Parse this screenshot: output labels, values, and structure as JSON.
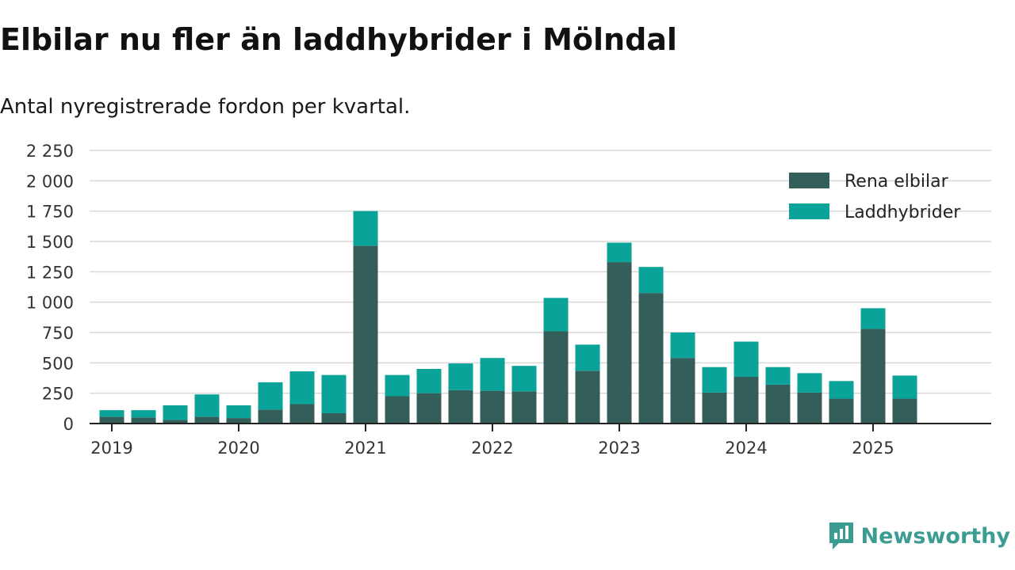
{
  "title": "Elbilar nu fler än laddhybrider i Mölndal",
  "subtitle": "Antal nyregistrerade fordon per kvartal.",
  "brand": {
    "name": "Newsworthy",
    "icon": "newsworthy-logo-icon"
  },
  "colors": {
    "bev": "#335e5a",
    "phev": "#0aa39a",
    "grid": "#d9d9d9",
    "axis": "#222222",
    "text": "#333333"
  },
  "chart_data": {
    "type": "bar",
    "stacked": true,
    "title": "Elbilar nu fler än laddhybrider i Mölndal",
    "subtitle": "Antal nyregistrerade fordon per kvartal.",
    "xlabel": "",
    "ylabel": "",
    "ylim": [
      0,
      2250
    ],
    "yticks": [
      0,
      250,
      500,
      750,
      1000,
      1250,
      1500,
      1750,
      2000,
      2250
    ],
    "ytick_labels": [
      "0",
      "250",
      "500",
      "750",
      "1 000",
      "1 250",
      "1 500",
      "1 750",
      "2 000",
      "2 250"
    ],
    "xticks": [
      "2019",
      "2020",
      "2021",
      "2022",
      "2023",
      "2024",
      "2025"
    ],
    "grid": true,
    "legend_position": "top-right",
    "categories": [
      "2019 Q1",
      "2019 Q2",
      "2019 Q3",
      "2019 Q4",
      "2020 Q1",
      "2020 Q2",
      "2020 Q3",
      "2020 Q4",
      "2021 Q1",
      "2021 Q2",
      "2021 Q3",
      "2021 Q4",
      "2022 Q1",
      "2022 Q2",
      "2022 Q3",
      "2022 Q4",
      "2023 Q1",
      "2023 Q2",
      "2023 Q3",
      "2023 Q4",
      "2024 Q1",
      "2024 Q2",
      "2024 Q3",
      "2024 Q4",
      "2025 Q1",
      "2025 Q2",
      "2025 Q3"
    ],
    "series": [
      {
        "name": "Rena elbilar",
        "color": "#335e5a",
        "values": [
          55,
          50,
          30,
          55,
          45,
          115,
          160,
          85,
          1465,
          225,
          250,
          275,
          270,
          265,
          760,
          435,
          1330,
          1075,
          540,
          255,
          385,
          320,
          255,
          205,
          780,
          205,
          null
        ]
      },
      {
        "name": "Laddhybrider",
        "color": "#0aa39a",
        "values": [
          55,
          60,
          120,
          185,
          105,
          225,
          270,
          315,
          285,
          175,
          200,
          220,
          270,
          210,
          275,
          215,
          160,
          215,
          210,
          210,
          290,
          145,
          160,
          145,
          170,
          190,
          null
        ]
      }
    ]
  }
}
